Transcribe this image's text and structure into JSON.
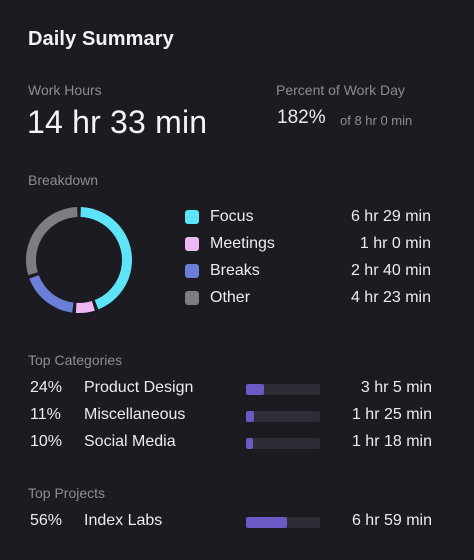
{
  "card": {
    "title": "Daily Summary"
  },
  "work_hours": {
    "label": "Work Hours",
    "value": "14 hr 33 min"
  },
  "percent_of_work_day": {
    "label": "Percent of Work Day",
    "value": "182%",
    "sub": "of 8 hr 0 min"
  },
  "breakdown": {
    "label": "Breakdown",
    "items": [
      {
        "name": "Focus",
        "value": "6 hr 29 min",
        "minutes": 389,
        "color": "#5fe3f8"
      },
      {
        "name": "Meetings",
        "value": "1 hr 0 min",
        "minutes": 60,
        "color": "#efb8f4"
      },
      {
        "name": "Breaks",
        "value": "2 hr 40 min",
        "minutes": 160,
        "color": "#6b7fd8"
      },
      {
        "name": "Other",
        "value": "4 hr 23 min",
        "minutes": 263,
        "color": "#7d7d82"
      }
    ]
  },
  "top_categories": {
    "label": "Top Categories",
    "items": [
      {
        "percent": "24%",
        "name": "Product Design",
        "time": "3 hr 5 min",
        "fraction": 0.24
      },
      {
        "percent": "11%",
        "name": "Miscellaneous",
        "time": "1 hr 25 min",
        "fraction": 0.11
      },
      {
        "percent": "10%",
        "name": "Social Media",
        "time": "1 hr 18 min",
        "fraction": 0.1
      }
    ]
  },
  "top_projects": {
    "label": "Top Projects",
    "items": [
      {
        "percent": "56%",
        "name": "Index Labs",
        "time": "6 hr 59 min",
        "fraction": 0.56
      }
    ]
  },
  "colors": {
    "bar_fill": "#6a5bc4",
    "bar_track": "#2e2d36",
    "background": "#1c1b21"
  }
}
